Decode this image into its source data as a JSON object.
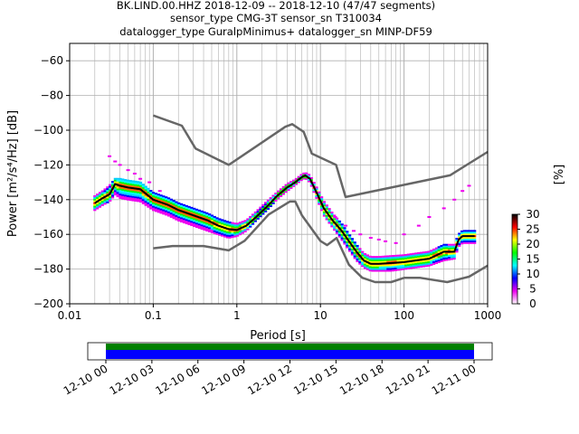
{
  "title_lines": [
    "BK.LIND.00.HHZ   2018-12-09 -- 2018-12-10  (47/47 segments)",
    "sensor_type CMG-3T sensor_sn T310034",
    "datalogger_type GuralpMinimus+ datalogger_sn MINP-DF59"
  ],
  "chart_data": {
    "type": "heatmap",
    "subtype": "probabilistic power spectral density",
    "xlabel": "Period [s]",
    "ylabel": "Power [m²/s⁴/Hz] [dB]",
    "xscale": "log",
    "xlim": [
      0.01,
      1000
    ],
    "ylim": [
      -200,
      -50
    ],
    "x_ticks": [
      0.01,
      0.1,
      1,
      10,
      100,
      1000
    ],
    "x_tick_labels": [
      "0.01",
      "0.1",
      "1",
      "10",
      "100",
      "1000"
    ],
    "y_ticks": [
      -200,
      -180,
      -160,
      -140,
      -120,
      -100,
      -80,
      -60
    ],
    "grid": true,
    "colorbar": {
      "label": "[%]",
      "range": [
        0,
        30
      ],
      "ticks": [
        0,
        5,
        10,
        15,
        20,
        25,
        30
      ],
      "colors": [
        "#ffffff",
        "#ee00ee",
        "#0000ff",
        "#00ffff",
        "#00ff00",
        "#ffff00",
        "#ff0000",
        "#000000"
      ]
    },
    "noise_model_high": {
      "name": "NHNM",
      "color": "#666666",
      "x": [
        0.1,
        0.22,
        0.32,
        0.8,
        3.8,
        4.6,
        6.3,
        7.9,
        15.4,
        20,
        354.8,
        1000
      ],
      "y": [
        -91.5,
        -97.4,
        -110.5,
        -120,
        -98,
        -96.5,
        -101,
        -113.5,
        -120,
        -138.5,
        -126,
        -112.5
      ]
    },
    "noise_model_low": {
      "name": "NLNM",
      "color": "#666666",
      "x": [
        0.1,
        0.17,
        0.4,
        0.8,
        1.24,
        2.4,
        4.3,
        5,
        6,
        10,
        12,
        15.6,
        21.9,
        31.6,
        45,
        70,
        101,
        154,
        328,
        600,
        1000
      ],
      "y": [
        -168,
        -166.7,
        -166.7,
        -169.2,
        -163.7,
        -148.6,
        -141.1,
        -141.1,
        -149,
        -163.8,
        -166.2,
        -162.1,
        -177.5,
        -185,
        -187.5,
        -187.5,
        -185,
        -185,
        -187.5,
        -184.4,
        -178
      ]
    },
    "mode": {
      "name": "mode",
      "color": "#000000",
      "x": [
        0.02,
        0.025,
        0.03,
        0.035,
        0.04,
        0.05,
        0.07,
        0.1,
        0.15,
        0.2,
        0.3,
        0.45,
        0.6,
        0.8,
        1,
        1.3,
        1.7,
        2.3,
        3,
        4,
        5,
        6,
        6.6,
        7.5,
        9,
        11,
        14,
        18,
        22,
        27,
        33,
        40,
        50,
        70,
        100,
        140,
        200,
        300,
        400,
        450,
        500,
        600,
        700
      ],
      "y": [
        -142,
        -139,
        -137,
        -131,
        -132,
        -133,
        -134,
        -140,
        -143,
        -146,
        -149,
        -152,
        -155,
        -157,
        -157.5,
        -155,
        -150,
        -144,
        -138,
        -133,
        -130,
        -127,
        -126,
        -128,
        -136,
        -145,
        -152,
        -158,
        -164,
        -170,
        -175,
        -177,
        -177,
        -176.5,
        -176,
        -175,
        -174,
        -170,
        -170,
        -163,
        -161,
        -161,
        -161
      ]
    },
    "density_band": {
      "x": [
        0.02,
        0.025,
        0.03,
        0.035,
        0.04,
        0.05,
        0.07,
        0.1,
        0.15,
        0.2,
        0.3,
        0.45,
        0.6,
        0.8,
        1,
        1.3,
        1.7,
        2.3,
        3,
        4,
        5,
        6,
        6.6,
        7.5,
        9,
        11,
        14,
        18,
        22,
        27,
        33,
        40,
        50,
        70,
        100,
        140,
        200,
        300,
        400,
        450,
        500,
        600,
        700
      ],
      "y_low": [
        -146,
        -143,
        -141,
        -137,
        -139,
        -140,
        -141,
        -146,
        -149,
        -152,
        -155,
        -158,
        -160,
        -162,
        -161,
        -158,
        -152,
        -146,
        -140,
        -135,
        -131.5,
        -128.5,
        -127.5,
        -130,
        -139,
        -149,
        -156,
        -163,
        -169,
        -175,
        -179,
        -181,
        -181,
        -181,
        -180,
        -179,
        -178,
        -175,
        -174,
        -167,
        -165,
        -165,
        -165
      ],
      "y_high": [
        -138,
        -135,
        -132,
        -128,
        -128,
        -129,
        -130,
        -136,
        -139,
        -142,
        -145,
        -148,
        -151,
        -153,
        -154,
        -152,
        -147,
        -141,
        -136,
        -131,
        -128.5,
        -125.5,
        -124.5,
        -126,
        -133,
        -141,
        -148,
        -154,
        -160,
        -166,
        -171,
        -173,
        -173,
        -172.5,
        -172,
        -171,
        -170,
        -166,
        -166,
        -160,
        -158,
        -158,
        -158
      ]
    },
    "outliers": {
      "x": [
        0.03,
        0.035,
        0.04,
        0.05,
        0.06,
        0.07,
        0.09,
        0.12,
        15,
        20,
        25,
        30,
        40,
        50,
        60,
        80,
        100,
        150,
        200,
        300,
        400,
        500,
        600
      ],
      "y": [
        -115,
        -118,
        -120,
        -123,
        -125,
        -128,
        -130,
        -135,
        -150,
        -155,
        -158,
        -160,
        -162,
        -163,
        -164,
        -165,
        -160,
        -155,
        -150,
        -145,
        -140,
        -135,
        -132
      ]
    }
  },
  "time_coverage": {
    "tick_labels": [
      "12-10 00",
      "12-10 03",
      "12-10 06",
      "12-10 09",
      "12-10 12",
      "12-10 15",
      "12-10 18",
      "12-10 21",
      "12-11 00"
    ],
    "bar_colors": {
      "coverage": "#0000ff",
      "data": "#008000"
    }
  }
}
